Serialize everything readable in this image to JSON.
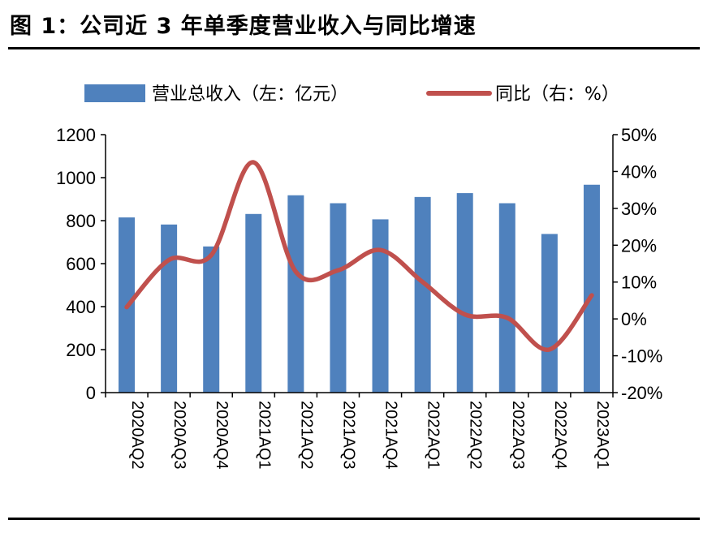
{
  "figure": {
    "title": "图 1：公司近 3 年单季度营业收入与同比增速"
  },
  "chart_data": {
    "type": "bar+line",
    "categories": [
      "2020AQ2",
      "2020AQ3",
      "2020AQ4",
      "2021AQ1",
      "2021AQ2",
      "2021AQ3",
      "2021AQ4",
      "2022AQ1",
      "2022AQ2",
      "2022AQ3",
      "2022AQ4",
      "2023AQ1"
    ],
    "series": [
      {
        "name": "营业总收入（左：亿元）",
        "type": "bar",
        "axis": "left",
        "values": [
          815,
          782,
          680,
          831,
          918,
          881,
          806,
          910,
          928,
          881,
          738,
          967
        ]
      },
      {
        "name": "同比（右：%）",
        "type": "line",
        "axis": "right",
        "values": [
          3.2,
          16.0,
          17.3,
          42.5,
          12.8,
          13.2,
          18.7,
          10.0,
          1.2,
          0.3,
          -8.3,
          6.4
        ]
      }
    ],
    "left_axis": {
      "min": 0,
      "max": 1200,
      "ticks": [
        "0",
        "200",
        "400",
        "600",
        "800",
        "1000",
        "1200"
      ]
    },
    "right_axis": {
      "min": -20,
      "max": 50,
      "ticks": [
        "-20%",
        "-10%",
        "0%",
        "10%",
        "20%",
        "30%",
        "40%",
        "50%"
      ]
    },
    "legend_position": "top",
    "grid": false,
    "colors": {
      "bar": "#4F81BD",
      "line": "#C0504D"
    }
  }
}
